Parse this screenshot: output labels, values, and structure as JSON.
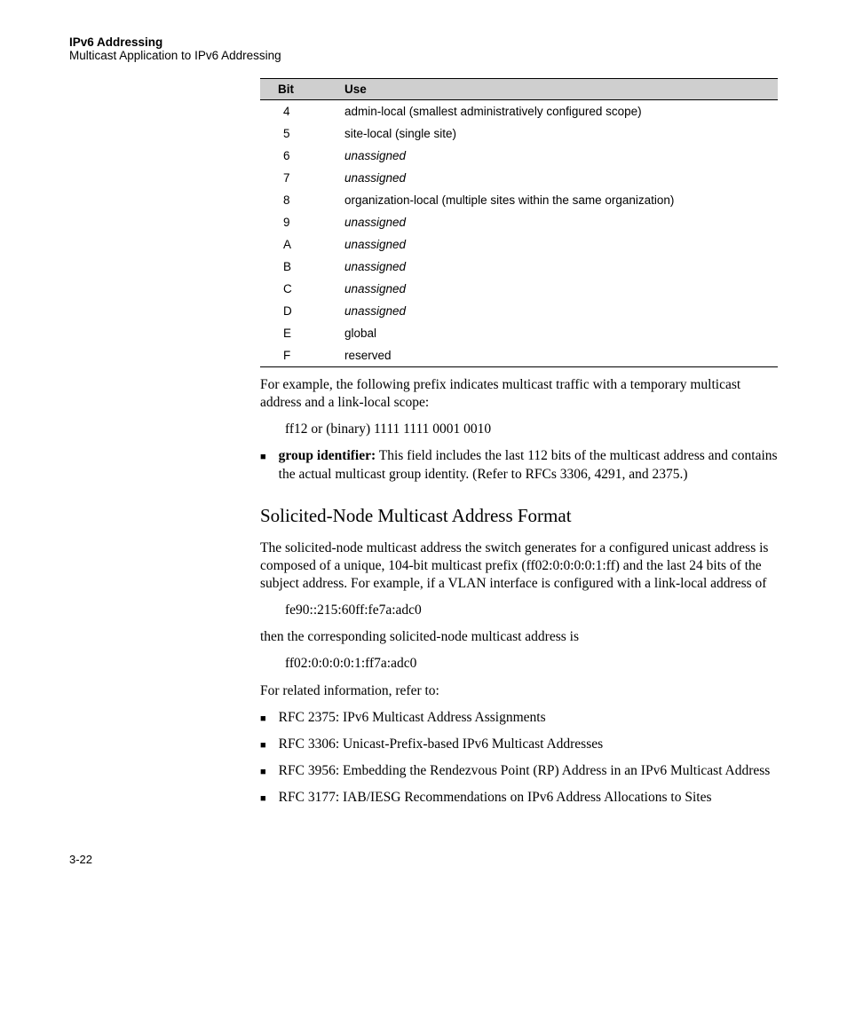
{
  "header": {
    "title": "IPv6 Addressing",
    "subtitle": "Multicast Application to IPv6 Addressing"
  },
  "table": {
    "head_bit": "Bit",
    "head_use": "Use",
    "rows": [
      {
        "bit": "4",
        "use": "admin-local (smallest administratively configured scope)",
        "italic": false
      },
      {
        "bit": "5",
        "use": "site-local (single site)",
        "italic": false
      },
      {
        "bit": "6",
        "use": "unassigned",
        "italic": true
      },
      {
        "bit": "7",
        "use": "unassigned",
        "italic": true
      },
      {
        "bit": "8",
        "use": "organization-local (multiple sites within the same organization)",
        "italic": false
      },
      {
        "bit": "9",
        "use": "unassigned",
        "italic": true
      },
      {
        "bit": "A",
        "use": "unassigned",
        "italic": true
      },
      {
        "bit": "B",
        "use": "unassigned",
        "italic": true
      },
      {
        "bit": "C",
        "use": "unassigned",
        "italic": true
      },
      {
        "bit": "D",
        "use": "unassigned",
        "italic": true
      },
      {
        "bit": "E",
        "use": "global",
        "italic": false
      },
      {
        "bit": "F",
        "use": "reserved",
        "italic": false
      }
    ]
  },
  "body": {
    "example_intro": "For example, the following prefix indicates multicast traffic with a temporary multicast address and a link-local scope:",
    "example_prefix": "ff12 or (binary) 1111 1111 0001 0010",
    "group_id_bold": "group identifier:",
    "group_id_text": " This field includes the last 112 bits of the multicast address and contains the actual multicast group identity. (Refer to RFCs 3306, 4291, and 2375.)",
    "section_title": "Solicited-Node Multicast Address Format",
    "solicited_p1": "The solicited-node multicast address the switch generates for a configured unicast address is composed of a unique, 104-bit multicast prefix (ff02:0:0:0:0:1:ff) and the last 24 bits of the subject address. For example, if a VLAN interface is configured with a link-local address of",
    "solicited_addr1": "fe90::215:60ff:fe7a:adc0",
    "solicited_p2": "then the corresponding solicited-node multicast address is",
    "solicited_addr2": "ff02:0:0:0:0:1:ff7a:adc0",
    "related_intro": "For related information, refer to:",
    "rfcs": [
      "RFC 2375: IPv6 Multicast Address Assignments",
      "RFC 3306: Unicast-Prefix-based IPv6 Multicast Addresses",
      "RFC 3956: Embedding the Rendezvous Point (RP) Address in an IPv6 Multicast Address",
      "RFC 3177: IAB/IESG Recommendations on IPv6 Address Allocations to Sites"
    ]
  },
  "page_number": "3-22"
}
